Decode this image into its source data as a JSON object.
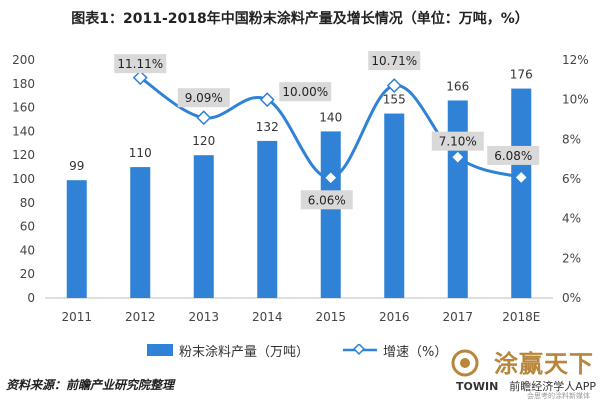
{
  "title": "图表1：2011-2018年中国粉末涂料产量及增长情况（单位：万吨，%）",
  "colors": {
    "bar": "#2f82d6",
    "line": "#2f82d6",
    "label_bg": "#d9d9d9",
    "axis_text": "#444444",
    "brand": "#b8863b"
  },
  "chart_data": {
    "type": "bar",
    "categories": [
      "2011",
      "2012",
      "2013",
      "2014",
      "2015",
      "2016",
      "2017",
      "2018E"
    ],
    "series": [
      {
        "name": "粉末涂料产量（万吨）",
        "type": "bar",
        "axis": "left",
        "values": [
          99,
          110,
          120,
          132,
          140,
          155,
          166,
          176
        ],
        "labels": [
          "99",
          "110",
          "120",
          "132",
          "140",
          "155",
          "166",
          "176"
        ]
      },
      {
        "name": "增速（%）",
        "type": "line",
        "axis": "right",
        "values": [
          null,
          11.11,
          9.09,
          10.0,
          6.06,
          10.71,
          7.1,
          6.08
        ],
        "labels": [
          "",
          "11.11%",
          "9.09%",
          "10.00%",
          "6.06%",
          "10.71%",
          "7.10%",
          "6.08%"
        ]
      }
    ],
    "left_axis": {
      "ylim": [
        0,
        200
      ],
      "ticks": [
        "0",
        "20",
        "40",
        "60",
        "80",
        "100",
        "120",
        "140",
        "160",
        "180",
        "200"
      ]
    },
    "right_axis": {
      "ylim": [
        0,
        12
      ],
      "ticks": [
        "0%",
        "2%",
        "4%",
        "6%",
        "8%",
        "10%",
        "12%"
      ]
    },
    "grid": false,
    "legend": "bottom"
  },
  "source": "资料来源：前瞻产业研究院整理",
  "brand": {
    "name": "涂赢天下",
    "left": "TOWIN",
    "app": "前瞻经济学人APP",
    "sub": "会思考的涂料新媒体"
  }
}
